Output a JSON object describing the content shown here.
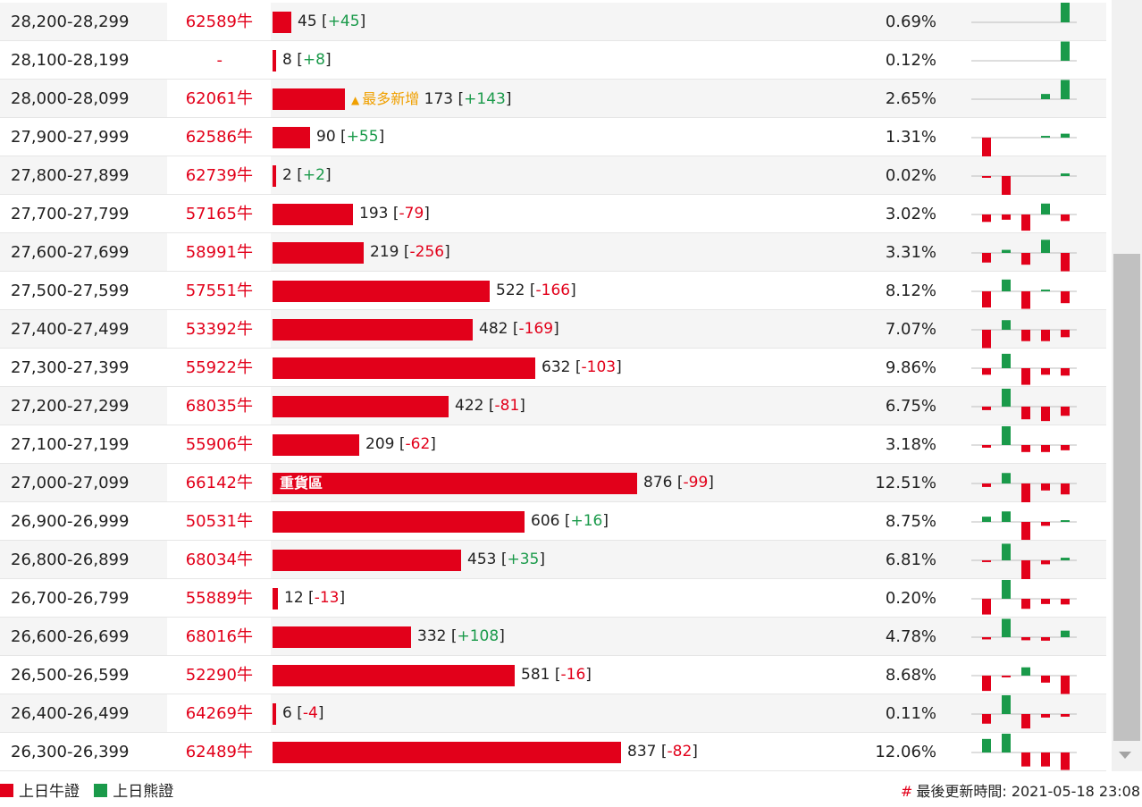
{
  "colors": {
    "bull": "#e2001a",
    "bear": "#1a9a4a",
    "highlight": "#f0a000"
  },
  "bar_scale": {
    "value": 876,
    "pixels": 408
  },
  "rows": [
    {
      "range": "28,200-28,299",
      "code": "62589牛",
      "value": "45",
      "change": "+45",
      "pct": "0.69%",
      "spark": [
        0,
        0,
        0,
        0,
        45
      ]
    },
    {
      "range": "28,100-28,199",
      "code": "-",
      "value": "8",
      "change": "+8",
      "pct": "0.12%",
      "spark": [
        0,
        0,
        0,
        0,
        44
      ]
    },
    {
      "range": "28,000-28,099",
      "code": "62061牛",
      "value": "173",
      "change": "+143",
      "pct": "2.65%",
      "badge": "最多新增",
      "spark": [
        0,
        0,
        0,
        12,
        44
      ]
    },
    {
      "range": "27,900-27,999",
      "code": "62586牛",
      "value": "90",
      "change": "+55",
      "pct": "1.31%",
      "spark": [
        -43,
        0,
        0,
        4,
        9
      ]
    },
    {
      "range": "27,800-27,899",
      "code": "62739牛",
      "value": "2",
      "change": "+2",
      "pct": "0.02%",
      "spark": [
        -4,
        -43,
        0,
        0,
        6
      ]
    },
    {
      "range": "27,700-27,799",
      "code": "57165牛",
      "value": "193",
      "change": "-79",
      "pct": "3.02%",
      "spark": [
        -17,
        -12,
        -37,
        25,
        -15
      ]
    },
    {
      "range": "27,600-27,699",
      "code": "58991牛",
      "value": "219",
      "change": "-256",
      "pct": "3.31%",
      "spark": [
        -22,
        7,
        -27,
        30,
        -42
      ]
    },
    {
      "range": "27,500-27,599",
      "code": "57551牛",
      "value": "522",
      "change": "-166",
      "pct": "8.12%",
      "spark": [
        -37,
        27,
        -40,
        4,
        -27
      ]
    },
    {
      "range": "27,400-27,499",
      "code": "53392牛",
      "value": "482",
      "change": "-169",
      "pct": "7.07%",
      "spark": [
        -42,
        22,
        -26,
        -26,
        -17
      ]
    },
    {
      "range": "27,300-27,399",
      "code": "55922牛",
      "value": "632",
      "change": "-103",
      "pct": "9.86%",
      "spark": [
        -15,
        33,
        -38,
        -15,
        -17
      ]
    },
    {
      "range": "27,200-27,299",
      "code": "68035牛",
      "value": "422",
      "change": "-81",
      "pct": "6.75%",
      "spark": [
        -8,
        41,
        -29,
        -33,
        -21
      ]
    },
    {
      "range": "27,100-27,199",
      "code": "55906牛",
      "value": "209",
      "change": "-62",
      "pct": "3.18%",
      "spark": [
        -6,
        43,
        -16,
        -16,
        -12
      ]
    },
    {
      "range": "27,000-27,099",
      "code": "66142牛",
      "value": "876",
      "change": "-99",
      "pct": "12.51%",
      "tag": "重貨區",
      "spark": [
        -8,
        24,
        -45,
        -16,
        -25
      ]
    },
    {
      "range": "26,900-26,999",
      "code": "50531牛",
      "value": "606",
      "change": "+16",
      "pct": "8.75%",
      "spark": [
        12,
        24,
        -41,
        -9,
        4
      ]
    },
    {
      "range": "26,800-26,899",
      "code": "68034牛",
      "value": "453",
      "change": "+35",
      "pct": "6.81%",
      "spark": [
        -4,
        38,
        -45,
        -9,
        6
      ]
    },
    {
      "range": "26,700-26,799",
      "code": "55889牛",
      "value": "12",
      "change": "-13",
      "pct": "0.20%",
      "spark": [
        -36,
        43,
        -23,
        -12,
        -13
      ]
    },
    {
      "range": "26,600-26,699",
      "code": "68016牛",
      "value": "332",
      "change": "+108",
      "pct": "4.78%",
      "spark": [
        -5,
        42,
        -7,
        -8,
        15
      ]
    },
    {
      "range": "26,500-26,599",
      "code": "52290牛",
      "value": "581",
      "change": "-16",
      "pct": "8.68%",
      "spark": [
        -35,
        -4,
        19,
        -16,
        -42
      ]
    },
    {
      "range": "26,400-26,499",
      "code": "64269牛",
      "value": "6",
      "change": "-4",
      "pct": "0.11%",
      "spark": [
        -22,
        43,
        -33,
        -8,
        -6
      ]
    },
    {
      "range": "26,300-26,399",
      "code": "62489牛",
      "value": "837",
      "change": "-82",
      "pct": "12.06%",
      "spark": [
        31,
        43,
        -32,
        -32,
        -40
      ]
    }
  ],
  "legend": {
    "bull": "上日牛證",
    "bear": "上日熊證"
  },
  "footer": {
    "hash": "#",
    "update_label": "最後更新時間:",
    "update_time": "2021-05-18 23:08"
  }
}
